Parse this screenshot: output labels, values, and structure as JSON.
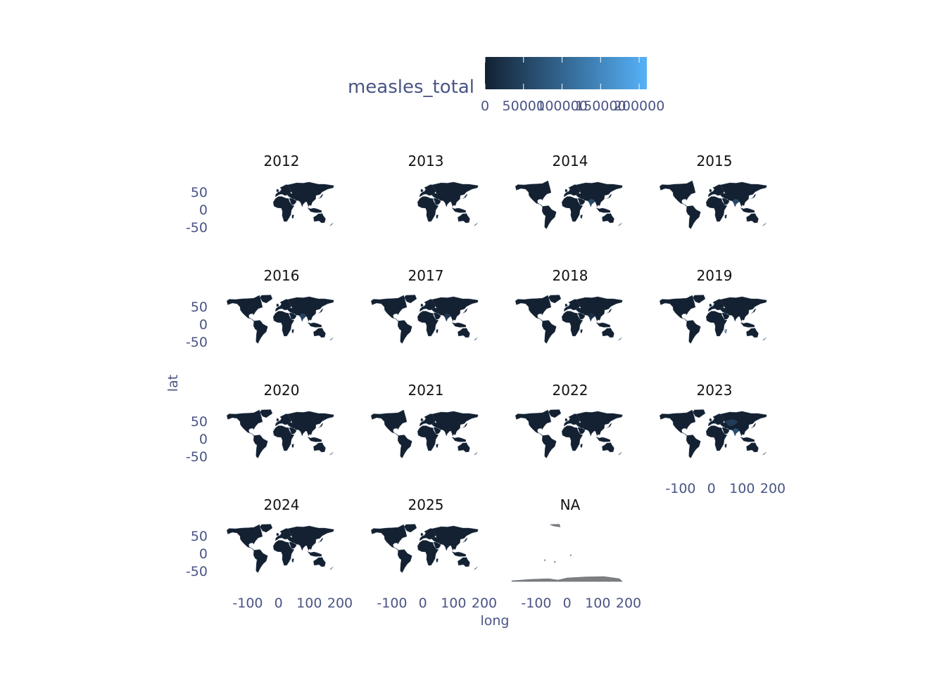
{
  "chart_data": {
    "type": "faceted choropleth map",
    "fill_variable": "measles_total",
    "xlabel": "long",
    "ylabel": "lat",
    "x_ticks": [
      "-100",
      "0",
      "100",
      "200"
    ],
    "y_ticks": [
      "50",
      "0",
      "-50"
    ],
    "legend": {
      "title": "measles_total",
      "placement": "top",
      "range": [
        0,
        210000
      ],
      "colors": [
        "#132132",
        "#56b1f7"
      ],
      "tick_labels": [
        "0",
        "50000",
        "100000",
        "150000",
        "200000"
      ],
      "tick_values": [
        0,
        50000,
        100000,
        150000,
        200000
      ]
    },
    "panels": [
      {
        "label": "2012",
        "coverage": "eastern"
      },
      {
        "label": "2013",
        "coverage": "eastern"
      },
      {
        "label": "2014",
        "coverage": "partial"
      },
      {
        "label": "2015",
        "coverage": "partial"
      },
      {
        "label": "2016",
        "coverage": "full"
      },
      {
        "label": "2017",
        "coverage": "full"
      },
      {
        "label": "2018",
        "coverage": "full"
      },
      {
        "label": "2019",
        "coverage": "full"
      },
      {
        "label": "2020",
        "coverage": "full"
      },
      {
        "label": "2021",
        "coverage": "partial"
      },
      {
        "label": "2022",
        "coverage": "full"
      },
      {
        "label": "2023",
        "coverage": "full"
      },
      {
        "label": "2024",
        "coverage": "full"
      },
      {
        "label": "2025",
        "coverage": "full"
      },
      {
        "label": "NA",
        "coverage": "na"
      }
    ],
    "highlights": [
      {
        "panel": "2014",
        "region": "south-asia",
        "value": 60000
      },
      {
        "panel": "2015",
        "region": "south-asia",
        "value": 60000
      },
      {
        "panel": "2016",
        "region": "south-asia",
        "value": 50000
      },
      {
        "panel": "2017",
        "region": "south-asia",
        "value": 30000
      },
      {
        "panel": "2018",
        "region": "south-asia",
        "value": 20000
      },
      {
        "panel": "2019",
        "region": "madagascar",
        "value": 210000
      },
      {
        "panel": "2023",
        "region": "south-asia",
        "value": 70000
      },
      {
        "panel": "2023",
        "region": "central-asia",
        "value": 40000
      }
    ],
    "na_color": "#7f7f7f"
  }
}
